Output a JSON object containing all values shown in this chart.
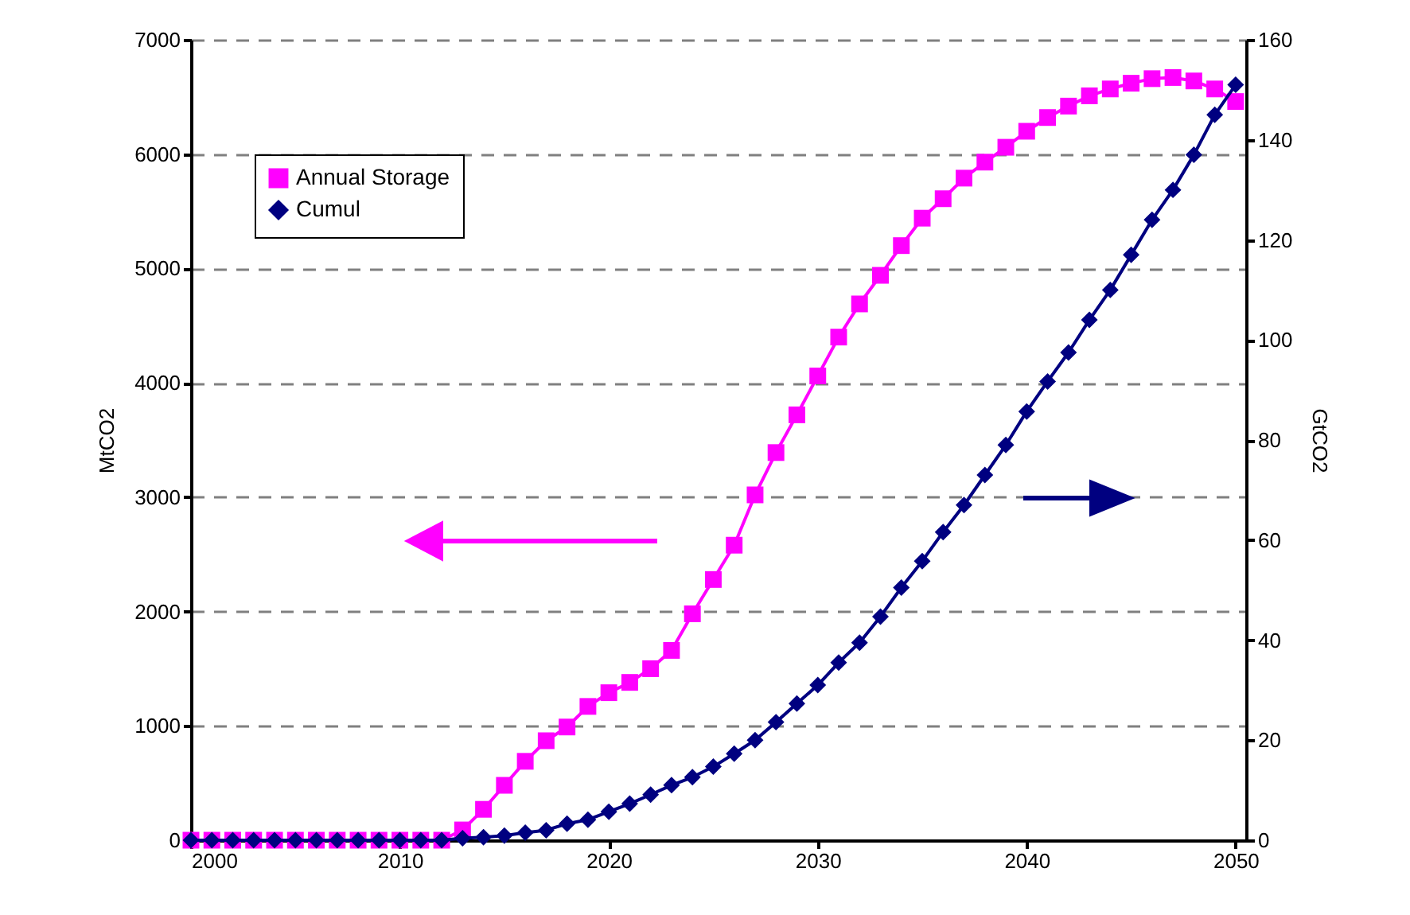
{
  "chart_data": {
    "type": "line",
    "ylabel": "MtCO2",
    "y2label": "GtCO2",
    "x": [
      2000,
      2001,
      2002,
      2003,
      2004,
      2005,
      2006,
      2007,
      2008,
      2009,
      2010,
      2011,
      2012,
      2013,
      2014,
      2015,
      2016,
      2017,
      2018,
      2019,
      2020,
      2021,
      2022,
      2023,
      2024,
      2025,
      2026,
      2027,
      2028,
      2029,
      2030,
      2031,
      2032,
      2033,
      2034,
      2035,
      2036,
      2037,
      2038,
      2039,
      2040,
      2041,
      2042,
      2043,
      2044,
      2045,
      2046,
      2047,
      2048,
      2049,
      2050
    ],
    "series": [
      {
        "name": "Annual Storage",
        "color": "#ff00ff",
        "marker": "square",
        "values": [
          0,
          0,
          0,
          0,
          0,
          0,
          0,
          0,
          0,
          0,
          0,
          0,
          0,
          90,
          270,
          480,
          690,
          870,
          990,
          1170,
          1290,
          1380,
          1500,
          1660,
          1980,
          2280,
          2580,
          3020,
          3390,
          3720,
          4060,
          4400,
          4690,
          4940,
          5200,
          5440,
          5610,
          5790,
          5930,
          6060,
          6200,
          6320,
          6420,
          6510,
          6570,
          6620,
          6660,
          6670,
          6640,
          6570,
          6460
        ]
      },
      {
        "name": "Cumul",
        "color": "#000080",
        "marker": "diamond",
        "axis": "y2",
        "values": [
          0,
          0,
          0,
          0,
          0,
          0,
          0,
          0,
          0,
          0,
          0,
          0,
          0,
          0.4,
          0.6,
          0.9,
          1.5,
          2,
          3.3,
          4.1,
          5.7,
          7.3,
          9.1,
          11,
          12.6,
          14.7,
          17.3,
          20,
          23.6,
          27.3,
          31,
          35.5,
          39.5,
          44.7,
          50.5,
          55.8,
          61.6,
          67,
          73,
          79,
          85.7,
          91.7,
          97.5,
          104,
          110,
          117,
          124,
          130,
          137,
          145,
          151
        ]
      }
    ],
    "xlim": [
      2000,
      2050.5
    ],
    "xticks": [
      2000,
      2010,
      2020,
      2030,
      2040,
      2050
    ],
    "ylim": [
      0,
      7000
    ],
    "yticks": [
      0,
      1000,
      2000,
      3000,
      4000,
      5000,
      6000,
      7000
    ],
    "y2lim": [
      0,
      160
    ],
    "y2ticks": [
      0,
      20,
      40,
      60,
      80,
      100,
      120,
      140,
      160
    ],
    "grid": "y",
    "legend": "top left",
    "line_style": "solid"
  }
}
